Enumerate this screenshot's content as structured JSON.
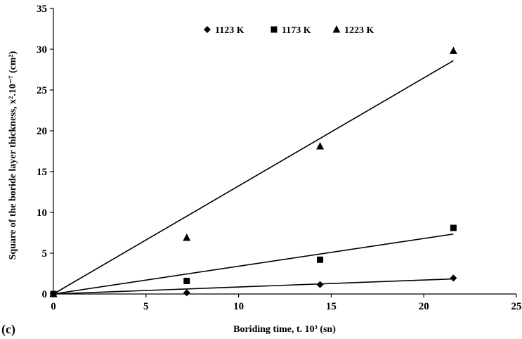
{
  "panel_label": "(c)",
  "chart_data": {
    "type": "scatter",
    "xlabel": "Boriding time, t. 10³ (sn)",
    "ylabel": "Square of the boride layer thickness, x².10⁻⁷ (cm²)",
    "xlim": [
      0,
      25
    ],
    "ylim": [
      0,
      35
    ],
    "x_ticks": [
      "0",
      "5",
      "10",
      "15",
      "20",
      "25"
    ],
    "y_ticks": [
      "0",
      "5",
      "10",
      "15",
      "20",
      "25",
      "30",
      "35"
    ],
    "grid": false,
    "legend_position": "top-center",
    "series": [
      {
        "name": "1123 K",
        "marker": "diamond",
        "color": "#000000",
        "points": [
          [
            0,
            0
          ],
          [
            7.2,
            0.15
          ],
          [
            14.4,
            1.15
          ],
          [
            21.6,
            1.95
          ]
        ],
        "fit_line": [
          [
            0,
            0
          ],
          [
            21.6,
            1.85
          ]
        ]
      },
      {
        "name": "1173 K",
        "marker": "square",
        "color": "#000000",
        "points": [
          [
            0,
            0
          ],
          [
            7.2,
            1.6
          ],
          [
            14.4,
            4.2
          ],
          [
            21.6,
            8.1
          ]
        ],
        "fit_line": [
          [
            0,
            0
          ],
          [
            21.6,
            7.35
          ]
        ]
      },
      {
        "name": "1223 K",
        "marker": "triangle",
        "color": "#000000",
        "points": [
          [
            0,
            0
          ],
          [
            7.2,
            6.9
          ],
          [
            14.4,
            18.1
          ],
          [
            21.6,
            29.8
          ]
        ],
        "fit_line": [
          [
            0,
            0
          ],
          [
            21.6,
            28.6
          ]
        ]
      }
    ]
  }
}
